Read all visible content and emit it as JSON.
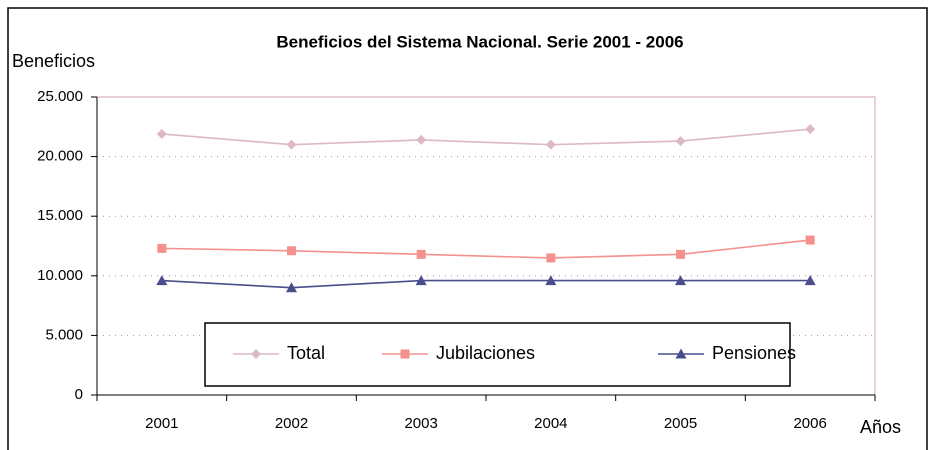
{
  "chart_data": {
    "type": "line",
    "title": "Beneficios del Sistema Nacional. Serie 2001 - 2006",
    "y_label": "Beneficios",
    "x_label": "Años",
    "categories": [
      "2001",
      "2002",
      "2003",
      "2004",
      "2005",
      "2006"
    ],
    "series": [
      {
        "name": "Total",
        "color": "#dcb8c9",
        "marker": "diamond",
        "values": [
          21900,
          21000,
          21400,
          21000,
          21300,
          22300
        ]
      },
      {
        "name": "Jubilaciones",
        "color": "#f4918f",
        "marker": "square",
        "values": [
          12300,
          12100,
          11800,
          11500,
          11800,
          13000
        ]
      },
      {
        "name": "Pensiones",
        "color": "#4a4d8c",
        "marker": "triangle",
        "values": [
          9600,
          9000,
          9600,
          9600,
          9600,
          9600
        ]
      }
    ],
    "ylim": [
      0,
      25000
    ],
    "yticks": [
      0,
      {
        "value": 5000,
        "label": "5.000"
      },
      {
        "value": 10000,
        "label": "10.000"
      },
      {
        "value": 15000,
        "label": "15.000"
      },
      {
        "value": 20000,
        "label": "20.000"
      },
      {
        "value": 25000,
        "label": "25.000"
      }
    ],
    "grid": true
  }
}
